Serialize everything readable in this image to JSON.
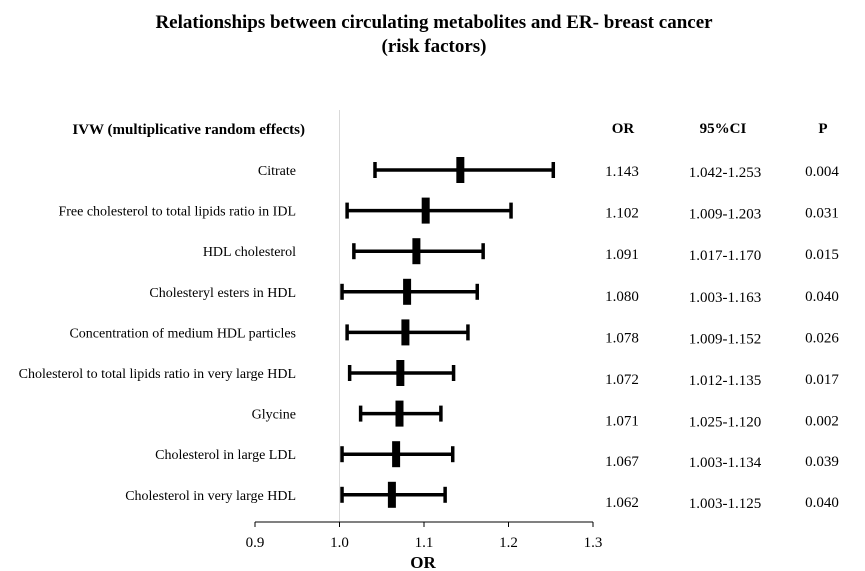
{
  "chart_data": {
    "type": "forest",
    "title_line1": "Relationships between circulating metabolites and ER- breast cancer",
    "title_line2": "(risk factors)",
    "method_label": "IVW (multiplicative random effects)",
    "xlabel": "OR",
    "xlim": [
      0.9,
      1.3
    ],
    "ticks": [
      0.9,
      1.0,
      1.1,
      1.2,
      1.3
    ],
    "tick_labels": [
      "0.9",
      "1.0",
      "1.1",
      "1.2",
      "1.3"
    ],
    "reference_line": 1.0,
    "columns": {
      "or": "OR",
      "ci": "95%CI",
      "p": "P"
    },
    "rows": [
      {
        "label": "Citrate",
        "or": 1.143,
        "lo": 1.042,
        "hi": 1.253,
        "or_text": "1.143",
        "ci_text": "1.042-1.253",
        "p_text": "0.004"
      },
      {
        "label": "Free cholesterol to total lipids ratio in IDL",
        "or": 1.102,
        "lo": 1.009,
        "hi": 1.203,
        "or_text": "1.102",
        "ci_text": "1.009-1.203",
        "p_text": "0.031"
      },
      {
        "label": "HDL cholesterol",
        "or": 1.091,
        "lo": 1.017,
        "hi": 1.17,
        "or_text": "1.091",
        "ci_text": "1.017-1.170",
        "p_text": "0.015"
      },
      {
        "label": "Cholesteryl esters in HDL",
        "or": 1.08,
        "lo": 1.003,
        "hi": 1.163,
        "or_text": "1.080",
        "ci_text": "1.003-1.163",
        "p_text": "0.040"
      },
      {
        "label": "Concentration of medium HDL particles",
        "or": 1.078,
        "lo": 1.009,
        "hi": 1.152,
        "or_text": "1.078",
        "ci_text": "1.009-1.152",
        "p_text": "0.026"
      },
      {
        "label": "Cholesterol to total lipids ratio in very large HDL",
        "or": 1.072,
        "lo": 1.012,
        "hi": 1.135,
        "or_text": "1.072",
        "ci_text": "1.012-1.135",
        "p_text": "0.017"
      },
      {
        "label": "Glycine",
        "or": 1.071,
        "lo": 1.025,
        "hi": 1.12,
        "or_text": "1.071",
        "ci_text": "1.025-1.120",
        "p_text": "0.002"
      },
      {
        "label": "Cholesterol in large LDL",
        "or": 1.067,
        "lo": 1.003,
        "hi": 1.134,
        "or_text": "1.067",
        "ci_text": "1.003-1.134",
        "p_text": "0.039"
      },
      {
        "label": "Cholesterol in very large HDL",
        "or": 1.062,
        "lo": 1.003,
        "hi": 1.125,
        "or_text": "1.062",
        "ci_text": "1.003-1.125",
        "p_text": "0.040"
      }
    ]
  }
}
